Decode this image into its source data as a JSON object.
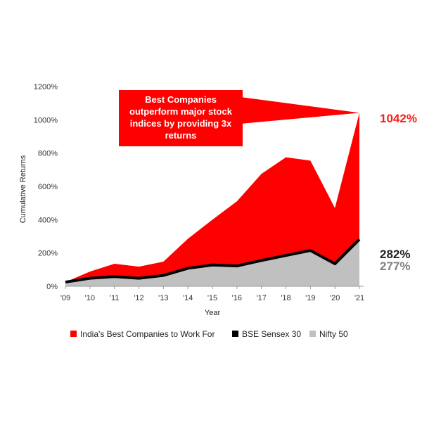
{
  "chart_data": {
    "type": "area",
    "x": [
      "'09",
      "'10",
      "'11",
      "'12",
      "'13",
      "'14",
      "'15",
      "'16",
      "'17",
      "'18",
      "'19",
      "'20",
      "'21"
    ],
    "xlabel": "Year",
    "ylabel": "Cumulative Returns",
    "ylim": [
      0,
      1200
    ],
    "yticks": [
      "0%",
      "200%",
      "400%",
      "600%",
      "800%",
      "1000%",
      "1200%"
    ],
    "series": [
      {
        "name": "India's Best Companies to Work For",
        "color": "#ff0000",
        "values": [
          25,
          88,
          135,
          118,
          148,
          285,
          400,
          510,
          675,
          775,
          755,
          470,
          1042
        ]
      },
      {
        "name": "BSE Sensex 30",
        "color": "#000000",
        "values": [
          25,
          48,
          58,
          48,
          65,
          108,
          128,
          122,
          155,
          185,
          215,
          135,
          282
        ]
      },
      {
        "name": "Nifty 50",
        "color": "#c0c0c0",
        "values": [
          20,
          44,
          52,
          45,
          60,
          102,
          122,
          118,
          150,
          180,
          208,
          130,
          277
        ]
      }
    ],
    "annotation": "Best Companies outperform major stock indices by providing 3x returns",
    "annotation_lines": [
      "Best Companies",
      "outperform major stock",
      "indices by providing 3x",
      "returns"
    ],
    "end_labels": {
      "best": "1042%",
      "sensex": "282%",
      "nifty": "277%"
    },
    "end_label_colors": {
      "best": "#ff1a1a",
      "sensex": "#222222",
      "nifty": "#808080"
    },
    "legend_position": "bottom",
    "grid": false
  }
}
